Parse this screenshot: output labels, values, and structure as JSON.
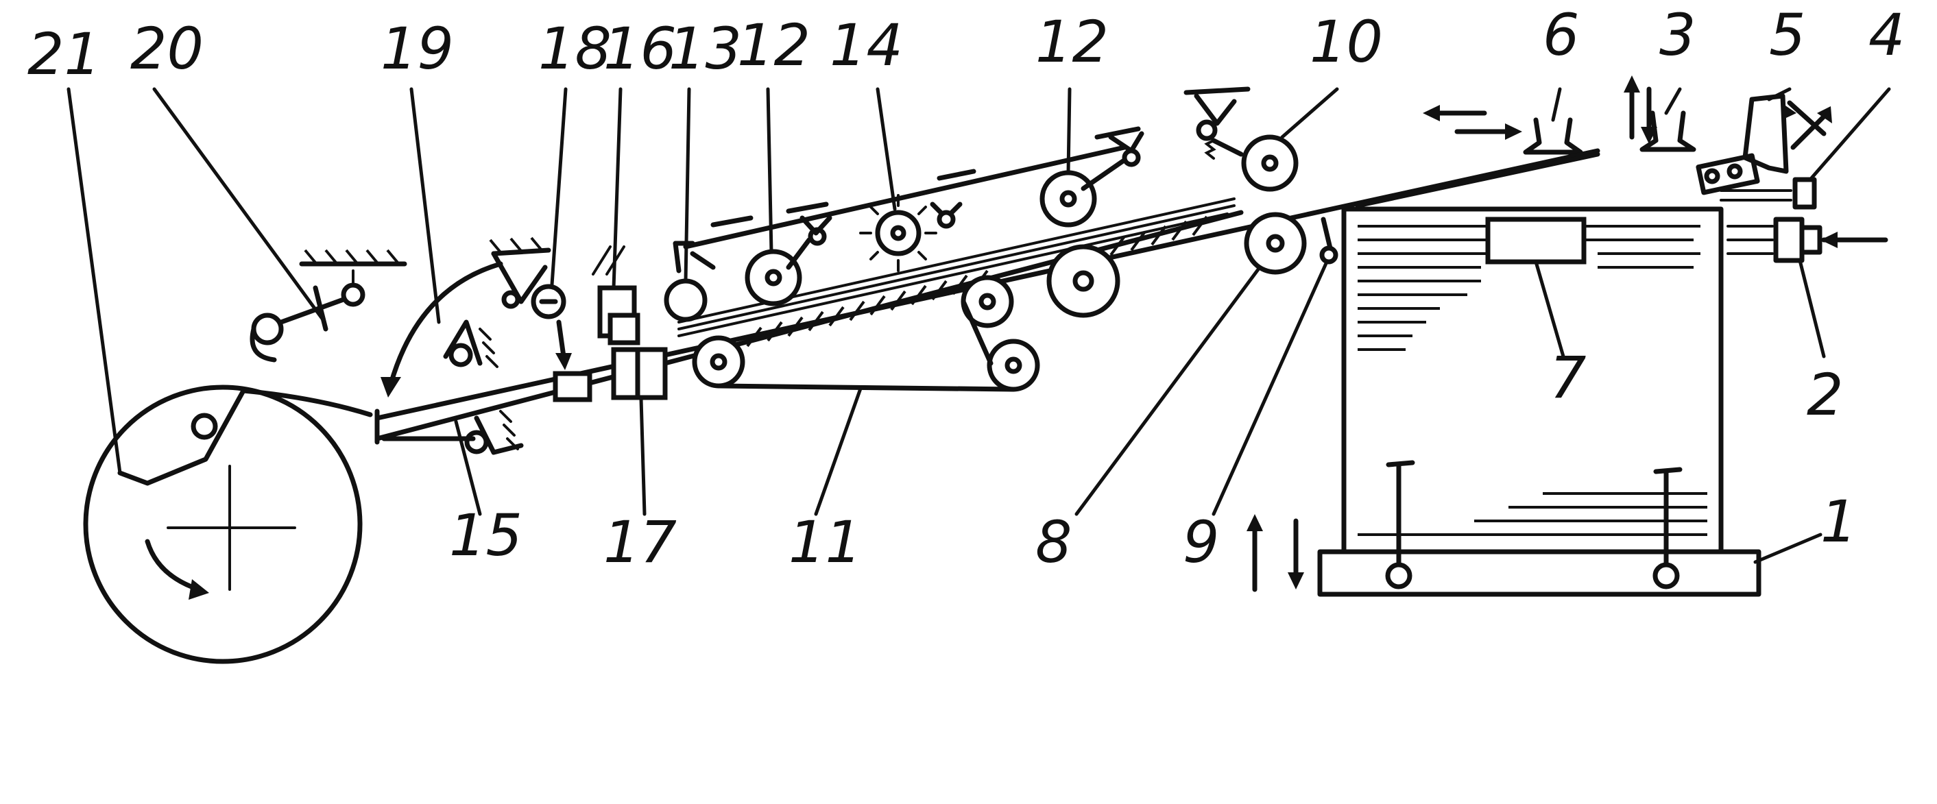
{
  "diagram": {
    "labels": [
      "21",
      "20",
      "19",
      "18",
      "16",
      "13",
      "12",
      "14",
      "12",
      "10",
      "6",
      "3",
      "5",
      "4",
      "2",
      "7",
      "1",
      "9",
      "8",
      "11",
      "17",
      "15"
    ]
  },
  "stroke_color": "#111111",
  "background_color": "#ffffff"
}
